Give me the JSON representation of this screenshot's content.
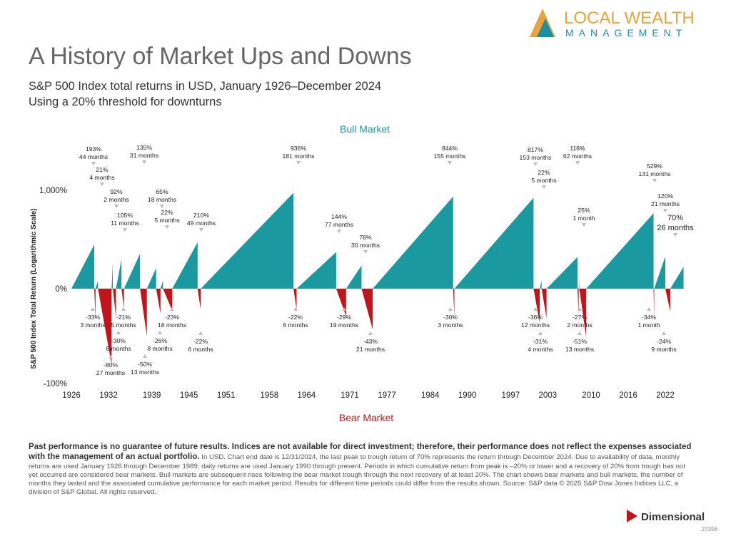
{
  "header": {
    "brand": "LOCAL WEALTH",
    "brand_sub": "MANAGEMENT"
  },
  "chart_data": {
    "type": "market-cycles",
    "title": "A History of Market Ups and Downs",
    "subtitle": "S&P 500 Index total returns in USD, January 1926–December 2024",
    "note": "Using a 20% threshold for downturns",
    "y_axis_label": "S&P 500 Index Total Return (Logarithmic Scale)",
    "xlim": [
      1926,
      2025
    ],
    "xticks": [
      1926,
      1932,
      1939,
      1945,
      1951,
      1958,
      1964,
      1971,
      1977,
      1984,
      1990,
      1997,
      2003,
      2010,
      2016,
      2022
    ],
    "ylim": [
      -100,
      1000
    ],
    "yticks": [
      {
        "value": 1000,
        "label": "1,000%"
      },
      {
        "value": 0,
        "label": "0%"
      },
      {
        "value": -100,
        "label": "-100%"
      }
    ],
    "log_scale": true,
    "series": [
      {
        "name": "Bull Market",
        "color": "#1a9aa0",
        "start": [
          1926.0,
          1929.9,
          1932.5,
          1933.2,
          1934.5,
          1938.2,
          1940.4,
          1942.3,
          1946.9,
          1962.4,
          1970.4,
          1974.7,
          1987.9,
          2001.7,
          2002.8,
          2008.0,
          2009.2,
          2020.2,
          2022.8
        ],
        "end": [
          1929.7,
          1930.3,
          1932.7,
          1934.1,
          1937.1,
          1939.7,
          1940.8,
          1946.4,
          1961.9,
          1968.8,
          1972.9,
          1987.7,
          2000.7,
          2002.0,
          2007.8,
          2008.1,
          2020.1,
          2022.0,
          2024.95
        ],
        "values": [
          193,
          21,
          92,
          105,
          135,
          65,
          22,
          210,
          936,
          144,
          76,
          844,
          817,
          22,
          116,
          25,
          529,
          120,
          70
        ],
        "value_labels": [
          "193%",
          "21%",
          "92%",
          "105%",
          "135%",
          "65%",
          "22%",
          "210%",
          "936%",
          "144%",
          "76%",
          "844%",
          "817%",
          "22%",
          "116%",
          "25%",
          "529%",
          "120%",
          "70%"
        ],
        "months": [
          44,
          4,
          2,
          11,
          31,
          18,
          5,
          49,
          181,
          77,
          30,
          155,
          153,
          5,
          62,
          1,
          131,
          21,
          26
        ],
        "month_labels": [
          "44 months",
          "4 months",
          "2 months",
          "11 months",
          "31 months",
          "18 months",
          "5 months",
          "49 months",
          "181 months",
          "77 months",
          "30 months",
          "155 months",
          "153 months",
          "5 months",
          "62 months",
          "1 month",
          "131 months",
          "21 months",
          "26 months"
        ]
      },
      {
        "name": "Bear Market",
        "color": "#c0161b",
        "start": [
          1929.7,
          1930.3,
          1932.7,
          1934.1,
          1937.1,
          1939.7,
          1940.8,
          1946.4,
          1961.9,
          1968.8,
          1972.9,
          1987.7,
          2000.7,
          2002.0,
          2007.8,
          2008.1,
          2020.1,
          2022.0
        ],
        "end": [
          1929.9,
          1932.5,
          1933.2,
          1934.5,
          1938.2,
          1940.4,
          1942.3,
          1946.9,
          1962.4,
          1970.4,
          1974.7,
          1987.9,
          2001.7,
          2002.8,
          2008.0,
          2009.2,
          2020.2,
          2022.8
        ],
        "values": [
          -33,
          -80,
          -30,
          -21,
          -50,
          -26,
          -23,
          -22,
          -22,
          -29,
          -43,
          -30,
          -36,
          -31,
          -27,
          -51,
          -34,
          -24
        ],
        "value_labels": [
          "-33%",
          "-80%",
          "-30%",
          "-21%",
          "-50%",
          "-26%",
          "-23%",
          "-22%",
          "-22%",
          "-29%",
          "-43%",
          "-30%",
          "-36%",
          "-31%",
          "-27%",
          "-51%",
          "-34%",
          "-24%"
        ],
        "months": [
          3,
          27,
          6,
          5,
          13,
          8,
          18,
          6,
          6,
          19,
          21,
          3,
          12,
          4,
          2,
          13,
          1,
          9
        ],
        "month_labels": [
          "3 months",
          "27 months",
          "6 months",
          "5 months",
          "13 months",
          "8 months",
          "18 months",
          "6 months",
          "6 months",
          "19 months",
          "21 months",
          "3 months",
          "12 months",
          "4 months",
          "2 months",
          "13 months",
          "1 month",
          "9 months"
        ]
      }
    ]
  },
  "footer": {
    "bold": "Past performance is no guarantee of future results. Indices are not available for direct investment; therefore, their performance does not reflect the expenses associated with the management of an actual portfolio.",
    "text": "In USD. Chart end date is 12/31/2024, the last peak to trough return of 70% represents the return through December 2024. Due to availability of data, monthly returns are used January 1926 through December 1989; daily returns are used January 1990 through present. Periods in which cumulative return from peak is –20% or lower and a recovery of 20% from trough has not yet occurred are considered bear markets. Bull markets are subsequent rises following the bear market trough through the next recovery of at least 20%. The chart shows bear markets and bull markets, the number of months they lasted and the associated cumulative performance for each market period. Results for different time periods could differ from the results shown. Source: S&P data © 2025 S&P Dow Jones Indices LLC, a division of S&P Global. All rights reserved.",
    "brand": "Dimensional",
    "code": "27356"
  }
}
